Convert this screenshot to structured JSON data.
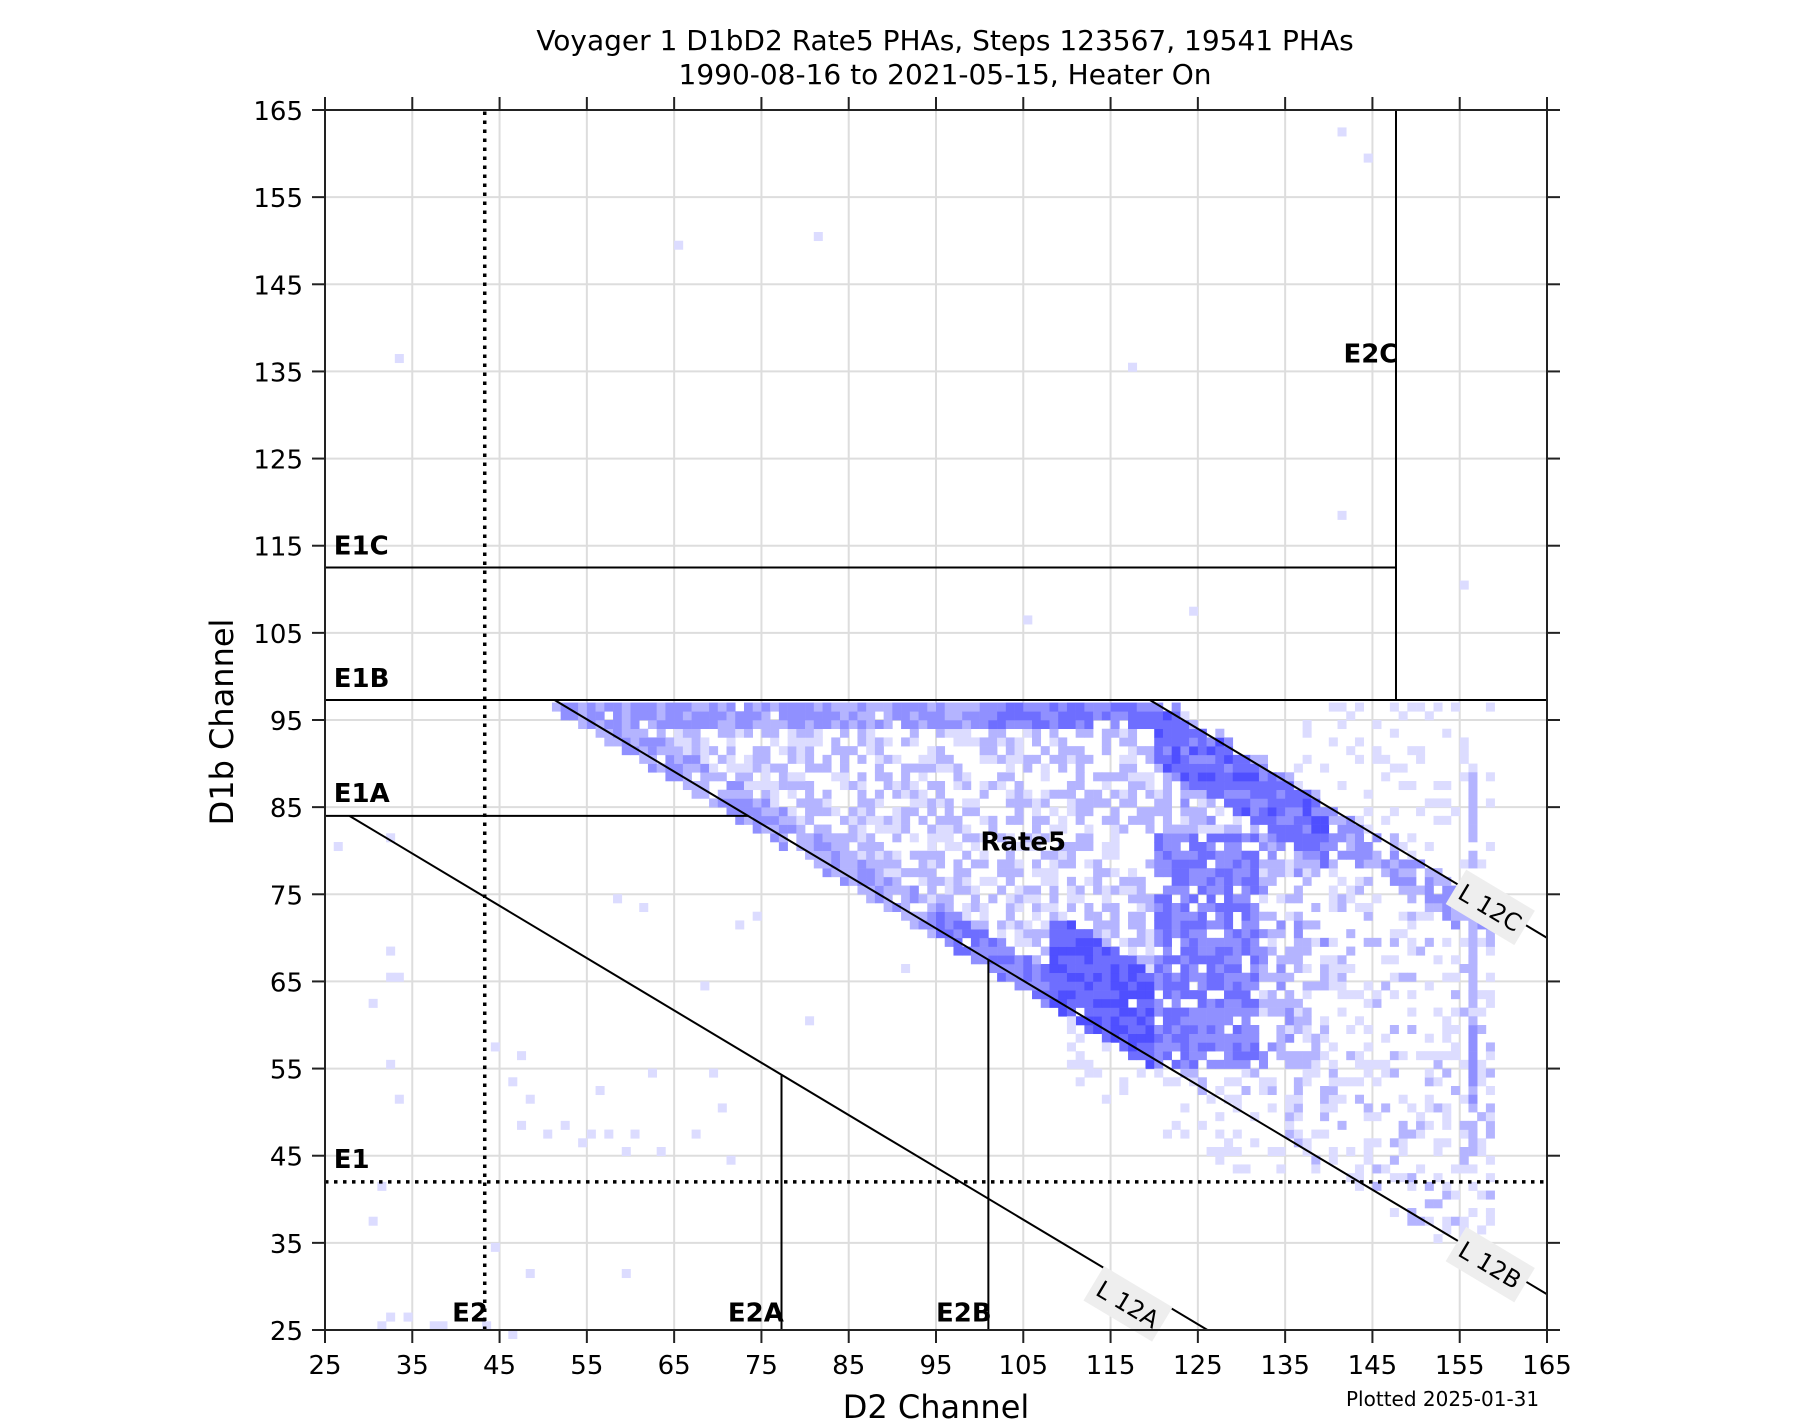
{
  "chart_data": {
    "type": "heatmap",
    "title": "Voyager 1 D1bD2 Rate5 PHAs, Steps 123567, 19541 PHAs",
    "subtitle": "1990-08-16 to 2021-05-15, Heater On",
    "xlabel": "D2 Channel",
    "ylabel": "D1b Channel",
    "xlim": [
      25,
      165
    ],
    "ylim": [
      25,
      165
    ],
    "xticks": [
      25,
      35,
      45,
      55,
      65,
      75,
      85,
      95,
      105,
      115,
      125,
      135,
      145,
      155,
      165
    ],
    "yticks": [
      25,
      35,
      45,
      55,
      65,
      75,
      85,
      95,
      105,
      115,
      125,
      135,
      145,
      155,
      165
    ],
    "grid": true,
    "colormap": [
      "#dcdcff",
      "#b4b4ff",
      "#9090ff",
      "#6e6eff",
      "#4f4fff"
    ],
    "footnote": "Plotted 2025-01-31",
    "boundaries": [
      {
        "name": "E1C",
        "type": "hline",
        "y": 112.5,
        "x": [
          25,
          147.7
        ],
        "style": "solid"
      },
      {
        "name": "E2C",
        "type": "vline",
        "x": 147.7,
        "y": [
          97.3,
          165
        ],
        "style": "solid"
      },
      {
        "name": "E1B",
        "type": "hline",
        "y": 97.3,
        "x": [
          25,
          165
        ],
        "style": "solid"
      },
      {
        "name": "E1A",
        "type": "hline",
        "y": 84,
        "x": [
          25,
          73.5
        ],
        "style": "solid"
      },
      {
        "name": "Rate5-lower / L12B",
        "type": "line",
        "from": [
          51.3,
          97.3
        ],
        "to": [
          165,
          29.1
        ],
        "style": "solid"
      },
      {
        "name": "L12C",
        "type": "line",
        "from": [
          119.5,
          97.3
        ],
        "to": [
          165,
          70
        ],
        "style": "solid"
      },
      {
        "name": "L12A",
        "type": "line",
        "from": [
          27.8,
          84
        ],
        "to": [
          126.1,
          25
        ],
        "style": "solid"
      },
      {
        "name": "E2A",
        "type": "vline",
        "x": 77.3,
        "y": [
          25,
          54.2
        ],
        "style": "solid"
      },
      {
        "name": "E2B",
        "type": "vline",
        "x": 101,
        "y": [
          25,
          67.5
        ],
        "style": "solid"
      },
      {
        "name": "E2",
        "type": "vline",
        "x": 43.3,
        "y": [
          25,
          165
        ],
        "style": "dotted"
      },
      {
        "name": "E1",
        "type": "hline",
        "y": 42,
        "x": [
          25,
          165
        ],
        "style": "dotted"
      }
    ],
    "region_labels": [
      {
        "text": "E1C",
        "x": 26,
        "y": 114
      },
      {
        "text": "E1B",
        "x": 26,
        "y": 98.8
      },
      {
        "text": "E1A",
        "x": 26,
        "y": 85.6
      },
      {
        "text": "E1",
        "x": 26,
        "y": 43.6
      },
      {
        "text": "E2",
        "x": 42.3,
        "y": 26
      },
      {
        "text": "E2A",
        "x": 76.2,
        "y": 26
      },
      {
        "text": "E2B",
        "x": 100,
        "y": 26
      },
      {
        "text": "E2C",
        "x": 146.6,
        "y": 136
      },
      {
        "text": "Rate5",
        "x": 105,
        "y": 80
      }
    ],
    "line_labels": [
      {
        "text": "L 12A",
        "x": 117,
        "y": 28
      },
      {
        "text": "L 12B",
        "x": 158.5,
        "y": 32.5
      },
      {
        "text": "L 12C",
        "x": 158.5,
        "y": 73.5
      }
    ],
    "isolated_points": [
      [
        65,
        149
      ],
      [
        81,
        150
      ],
      [
        33,
        136
      ],
      [
        117,
        135
      ],
      [
        141,
        162
      ],
      [
        144,
        159
      ],
      [
        141,
        118
      ],
      [
        105,
        106
      ],
      [
        124,
        107
      ],
      [
        155,
        110
      ],
      [
        26,
        80
      ],
      [
        30,
        62
      ],
      [
        32,
        65
      ],
      [
        33,
        65
      ],
      [
        32,
        68
      ],
      [
        32,
        55
      ],
      [
        33,
        51
      ],
      [
        31,
        41
      ],
      [
        30,
        37
      ],
      [
        32,
        81
      ],
      [
        44,
        57
      ],
      [
        47,
        56
      ],
      [
        46,
        53
      ],
      [
        48,
        51
      ],
      [
        47,
        48
      ],
      [
        50,
        47
      ],
      [
        52,
        48
      ],
      [
        54,
        46
      ],
      [
        55,
        47
      ],
      [
        56,
        52
      ],
      [
        57,
        47
      ],
      [
        59,
        45
      ],
      [
        60,
        47
      ],
      [
        62,
        54
      ],
      [
        63,
        45
      ],
      [
        67,
        47
      ],
      [
        69,
        54
      ],
      [
        71,
        44
      ],
      [
        70,
        50
      ],
      [
        58,
        74
      ],
      [
        61,
        73
      ],
      [
        72,
        71
      ],
      [
        74,
        72
      ],
      [
        68,
        64
      ],
      [
        80,
        60
      ],
      [
        91,
        66
      ],
      [
        44,
        34
      ],
      [
        48,
        31
      ],
      [
        59,
        31
      ],
      [
        46,
        24
      ],
      [
        31,
        25
      ],
      [
        32,
        26
      ],
      [
        34,
        26
      ],
      [
        38,
        25
      ],
      [
        37,
        25
      ],
      [
        43,
        25
      ]
    ],
    "density_regions": [
      {
        "name": "Rate5 band top edge (D1b 94-97)",
        "level": 3
      },
      {
        "name": "L12C corner dense band (D2 118-135)",
        "level": 4
      },
      {
        "name": "Lower-right dense wedge near L12B (D2 112-128, D1b 57-72)",
        "level": 4
      },
      {
        "name": "Central interior",
        "level": 1
      },
      {
        "name": "Vertical streak at D2 ~156-157, D1b 43-85",
        "level": 2
      }
    ]
  }
}
